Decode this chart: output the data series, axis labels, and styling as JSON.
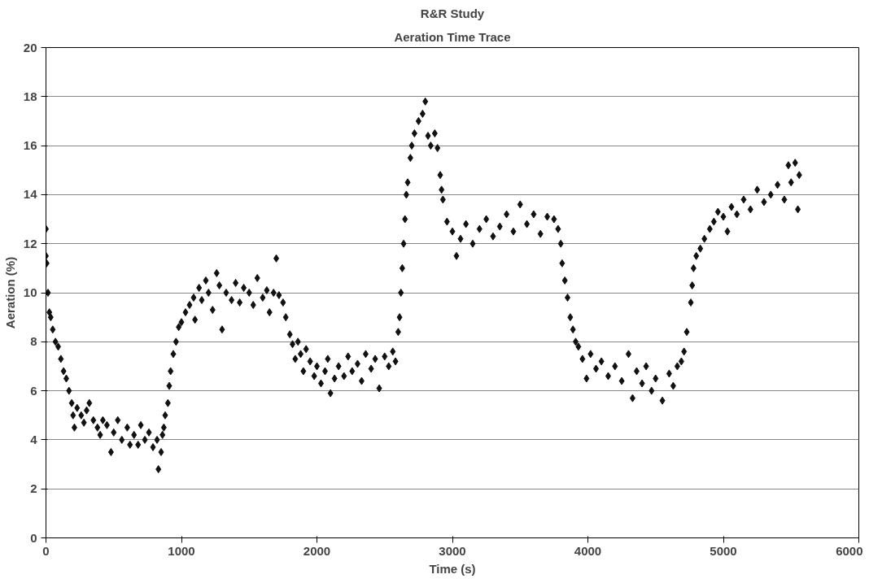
{
  "chart_data": {
    "type": "scatter",
    "title": "R&R Study",
    "subtitle": "Aeration Time Trace",
    "xlabel": "Time (s)",
    "ylabel": "Aeration (%)",
    "xlim": [
      0,
      6000
    ],
    "xticks": [
      0,
      1000,
      2000,
      3000,
      4000,
      5000,
      6000
    ],
    "ylim": [
      0,
      20
    ],
    "yticks": [
      0,
      2,
      4,
      6,
      8,
      10,
      12,
      14,
      16,
      18,
      20
    ],
    "grid": "y",
    "marker": "diamond",
    "x": [
      0,
      0,
      5,
      15,
      25,
      35,
      50,
      70,
      90,
      110,
      130,
      150,
      170,
      190,
      200,
      210,
      230,
      260,
      280,
      300,
      320,
      350,
      380,
      400,
      420,
      450,
      480,
      500,
      530,
      560,
      600,
      620,
      650,
      680,
      700,
      730,
      760,
      790,
      820,
      830,
      850,
      860,
      870,
      880,
      900,
      910,
      920,
      940,
      960,
      980,
      1000,
      1030,
      1060,
      1090,
      1100,
      1130,
      1150,
      1180,
      1200,
      1230,
      1260,
      1280,
      1300,
      1330,
      1370,
      1400,
      1430,
      1460,
      1500,
      1530,
      1560,
      1600,
      1630,
      1650,
      1680,
      1700,
      1720,
      1750,
      1770,
      1800,
      1820,
      1840,
      1860,
      1880,
      1900,
      1920,
      1950,
      1980,
      2000,
      2030,
      2060,
      2080,
      2100,
      2130,
      2160,
      2200,
      2230,
      2260,
      2300,
      2330,
      2360,
      2400,
      2430,
      2460,
      2500,
      2530,
      2560,
      2580,
      2600,
      2610,
      2620,
      2630,
      2640,
      2650,
      2660,
      2670,
      2690,
      2700,
      2720,
      2750,
      2780,
      2800,
      2820,
      2840,
      2870,
      2890,
      2910,
      2920,
      2930,
      2960,
      3000,
      3030,
      3060,
      3100,
      3150,
      3200,
      3250,
      3300,
      3350,
      3400,
      3450,
      3500,
      3550,
      3600,
      3650,
      3700,
      3750,
      3780,
      3800,
      3810,
      3830,
      3850,
      3870,
      3890,
      3910,
      3930,
      3960,
      3990,
      4020,
      4060,
      4100,
      4150,
      4200,
      4250,
      4300,
      4330,
      4360,
      4400,
      4430,
      4470,
      4500,
      4550,
      4600,
      4630,
      4660,
      4690,
      4710,
      4730,
      4760,
      4770,
      4780,
      4800,
      4830,
      4860,
      4900,
      4930,
      4960,
      5000,
      5030,
      5060,
      5100,
      5150,
      5200,
      5250,
      5300,
      5350,
      5400,
      5450,
      5480,
      5500,
      5530,
      5550,
      5560
    ],
    "series": [
      {
        "color": "#111111",
        "values": [
          12.6,
          11.5,
          11.2,
          10,
          9.2,
          9.0,
          8.5,
          8.0,
          7.8,
          7.3,
          6.8,
          6.5,
          6.0,
          5.5,
          5.0,
          4.5,
          5.3,
          5.0,
          4.7,
          5.2,
          5.5,
          4.8,
          4.5,
          4.2,
          4.8,
          4.6,
          3.5,
          4.3,
          4.8,
          4.0,
          4.5,
          3.8,
          4.2,
          3.8,
          4.6,
          4.0,
          4.3,
          3.7,
          4.0,
          2.8,
          3.5,
          4.2,
          4.5,
          5.0,
          5.5,
          6.2,
          6.8,
          7.5,
          8.0,
          8.6,
          8.8,
          9.2,
          9.5,
          9.8,
          8.9,
          10.2,
          9.7,
          10.5,
          10.0,
          9.3,
          10.8,
          10.3,
          8.5,
          10.0,
          9.7,
          10.4,
          9.6,
          10.2,
          10.0,
          9.5,
          10.6,
          9.8,
          10.1,
          9.2,
          10.0,
          11.4,
          9.9,
          9.6,
          9.0,
          8.3,
          7.9,
          7.3,
          8.0,
          7.5,
          6.8,
          7.7,
          7.2,
          6.6,
          7.0,
          6.3,
          6.8,
          7.3,
          5.9,
          6.5,
          7.0,
          6.6,
          7.4,
          6.8,
          7.1,
          6.4,
          7.5,
          6.9,
          7.3,
          6.1,
          7.4,
          7.0,
          7.6,
          7.2,
          8.4,
          9.0,
          10.0,
          11.0,
          12.0,
          13.0,
          14.0,
          14.5,
          15.5,
          16.0,
          16.5,
          17.0,
          17.3,
          17.8,
          16.4,
          16.0,
          16.5,
          15.9,
          14.8,
          14.2,
          13.8,
          12.9,
          12.5,
          11.5,
          12.2,
          12.8,
          12.0,
          12.6,
          13.0,
          12.3,
          12.7,
          13.2,
          12.5,
          13.6,
          12.8,
          13.2,
          12.4,
          13.1,
          13.0,
          12.6,
          12.0,
          11.2,
          10.5,
          9.8,
          9.0,
          8.5,
          8.0,
          7.8,
          7.3,
          6.5,
          7.5,
          6.9,
          7.2,
          6.6,
          7.0,
          6.4,
          7.5,
          5.7,
          6.8,
          6.3,
          7.0,
          6.0,
          6.5,
          5.6,
          6.7,
          6.2,
          7.0,
          7.2,
          7.6,
          8.4,
          9.6,
          10.3,
          11.0,
          11.5,
          11.8,
          12.2,
          12.6,
          12.9,
          13.3,
          13.1,
          12.5,
          13.5,
          13.2,
          13.8,
          13.4,
          14.2,
          13.7,
          14.0,
          14.4,
          13.8,
          15.2,
          14.5,
          15.3,
          13.4,
          14.8
        ]
      }
    ]
  }
}
